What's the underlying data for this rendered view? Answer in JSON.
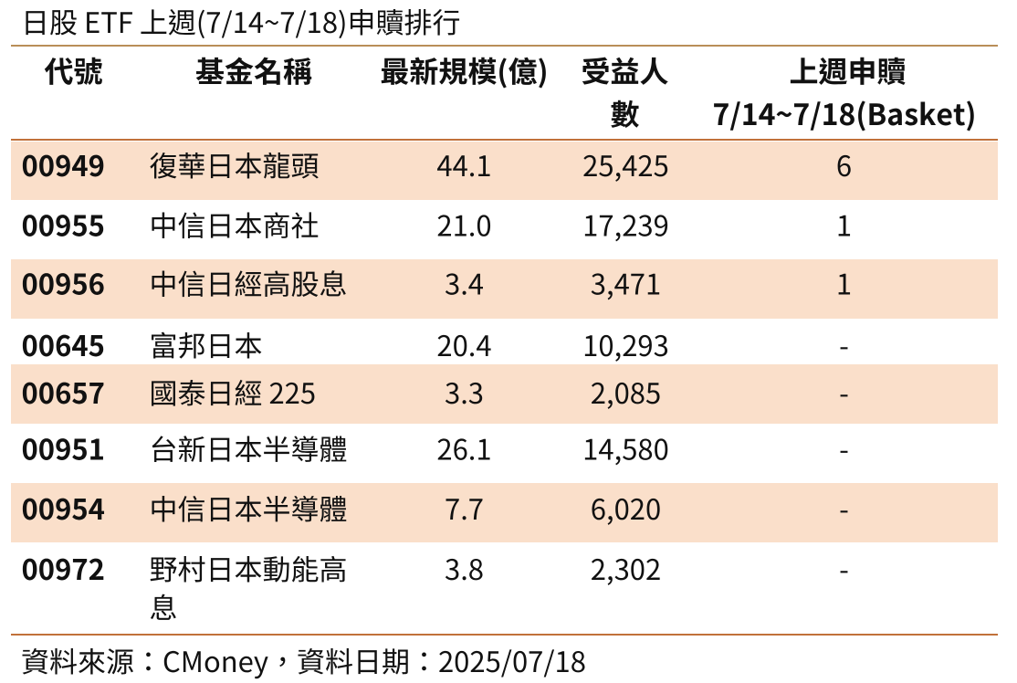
{
  "title": "日股 ETF 上週(7/14~7/18)申贖排行",
  "table": {
    "columns": [
      {
        "id": "code",
        "label_lines": [
          "代號"
        ]
      },
      {
        "id": "name",
        "label_lines": [
          "基金名稱"
        ]
      },
      {
        "id": "scale",
        "label_lines": [
          "最新規模(億)"
        ]
      },
      {
        "id": "holders",
        "label_lines": [
          "受益人",
          "數"
        ]
      },
      {
        "id": "baskets",
        "label_lines": [
          "上週申贖",
          "7/14~7/18(Basket)"
        ]
      }
    ],
    "rows": [
      {
        "code": "00949",
        "name": "復華日本龍頭",
        "scale": "44.1",
        "holders": "25,425",
        "baskets": "6"
      },
      {
        "code": "00955",
        "name": "中信日本商社",
        "scale": "21.0",
        "holders": "17,239",
        "baskets": "1"
      },
      {
        "code": "00956",
        "name": "中信日經高股息",
        "scale": "3.4",
        "holders": "3,471",
        "baskets": "1"
      },
      {
        "code": "00645",
        "name": "富邦日本",
        "scale": "20.4",
        "holders": "10,293",
        "baskets": "-"
      },
      {
        "code": "00657",
        "name": "國泰日經 225",
        "scale": "3.3",
        "holders": "2,085",
        "baskets": "-"
      },
      {
        "code": "00951",
        "name": "台新日本半導體",
        "scale": "26.1",
        "holders": "14,580",
        "baskets": "-"
      },
      {
        "code": "00954",
        "name": "中信日本半導體",
        "scale": "7.7",
        "holders": "6,020",
        "baskets": "-"
      },
      {
        "code": "00972",
        "name": "野村日本動能高息",
        "scale": "3.8",
        "holders": "2,302",
        "baskets": "-"
      }
    ]
  },
  "footer": {
    "source_text": "資料來源：CMoney，資料日期：2025/07/18"
  },
  "chart_data": {
    "type": "table",
    "title": "日股 ETF 上週(7/14~7/18)申贖排行",
    "columns": [
      "代號",
      "基金名稱",
      "最新規模(億)",
      "受益人數",
      "上週申贖 7/14~7/18(Basket)"
    ],
    "rows": [
      [
        "00949",
        "復華日本龍頭",
        44.1,
        25425,
        6
      ],
      [
        "00955",
        "中信日本商社",
        21.0,
        17239,
        1
      ],
      [
        "00956",
        "中信日經高股息",
        3.4,
        3471,
        1
      ],
      [
        "00645",
        "富邦日本",
        20.4,
        10293,
        null
      ],
      [
        "00657",
        "國泰日經 225",
        3.3,
        2085,
        null
      ],
      [
        "00951",
        "台新日本半導體",
        26.1,
        14580,
        null
      ],
      [
        "00954",
        "中信日本半導體",
        7.7,
        6020,
        null
      ],
      [
        "00972",
        "野村日本動能高息",
        3.8,
        2302,
        null
      ]
    ],
    "no_value_placeholder": "-",
    "source": "資料來源：CMoney，資料日期：2025/07/18"
  },
  "colors": {
    "band": "#FADFCA",
    "rule_orange": "#C1713A",
    "rule_tan": "#B98E58",
    "text": "#111111",
    "background": "#FFFFFF"
  }
}
